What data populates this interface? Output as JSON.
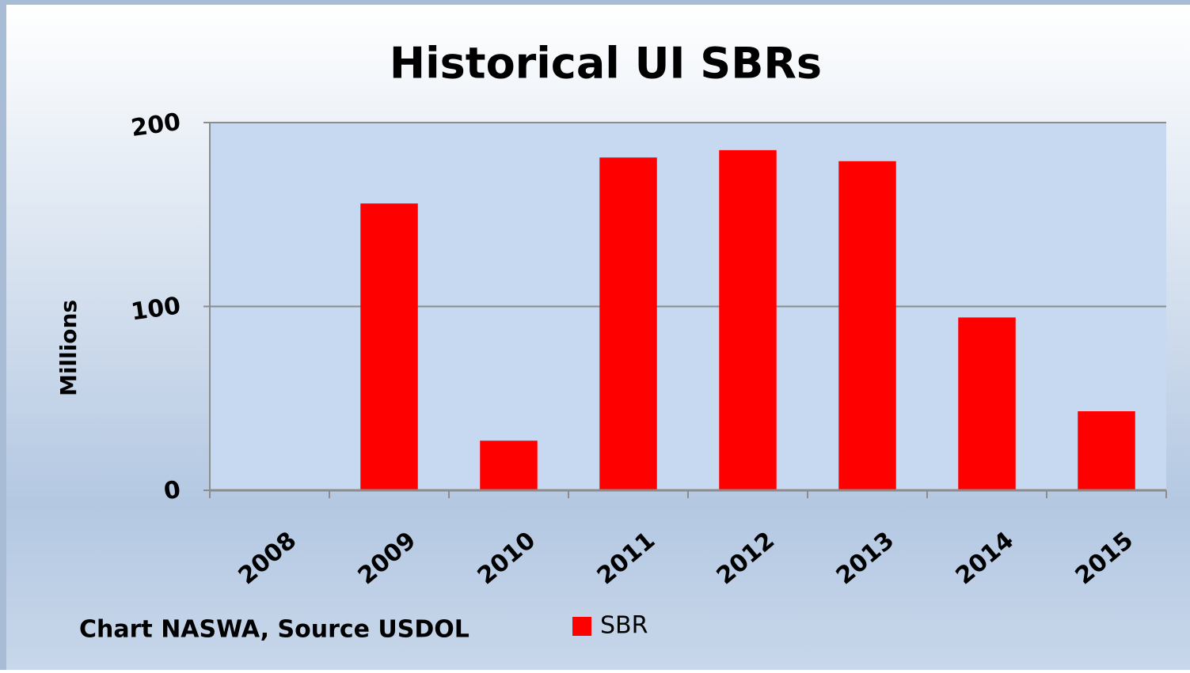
{
  "chart_data": {
    "type": "bar",
    "title": "Historical UI SBRs",
    "y_label": "Millions",
    "note": "Chart NASWA, Source USDOL",
    "categories": [
      "2008",
      "2009",
      "2010",
      "2011",
      "2012",
      "2013",
      "2014",
      "2015"
    ],
    "series": [
      {
        "name": "SBR",
        "color": "#ff0000",
        "values": [
          0,
          156,
          27,
          181,
          185,
          179,
          94,
          43
        ]
      }
    ],
    "ylim": [
      0,
      200
    ],
    "yticks": [
      0,
      100,
      200
    ],
    "grid": true,
    "legend": "bottom"
  }
}
